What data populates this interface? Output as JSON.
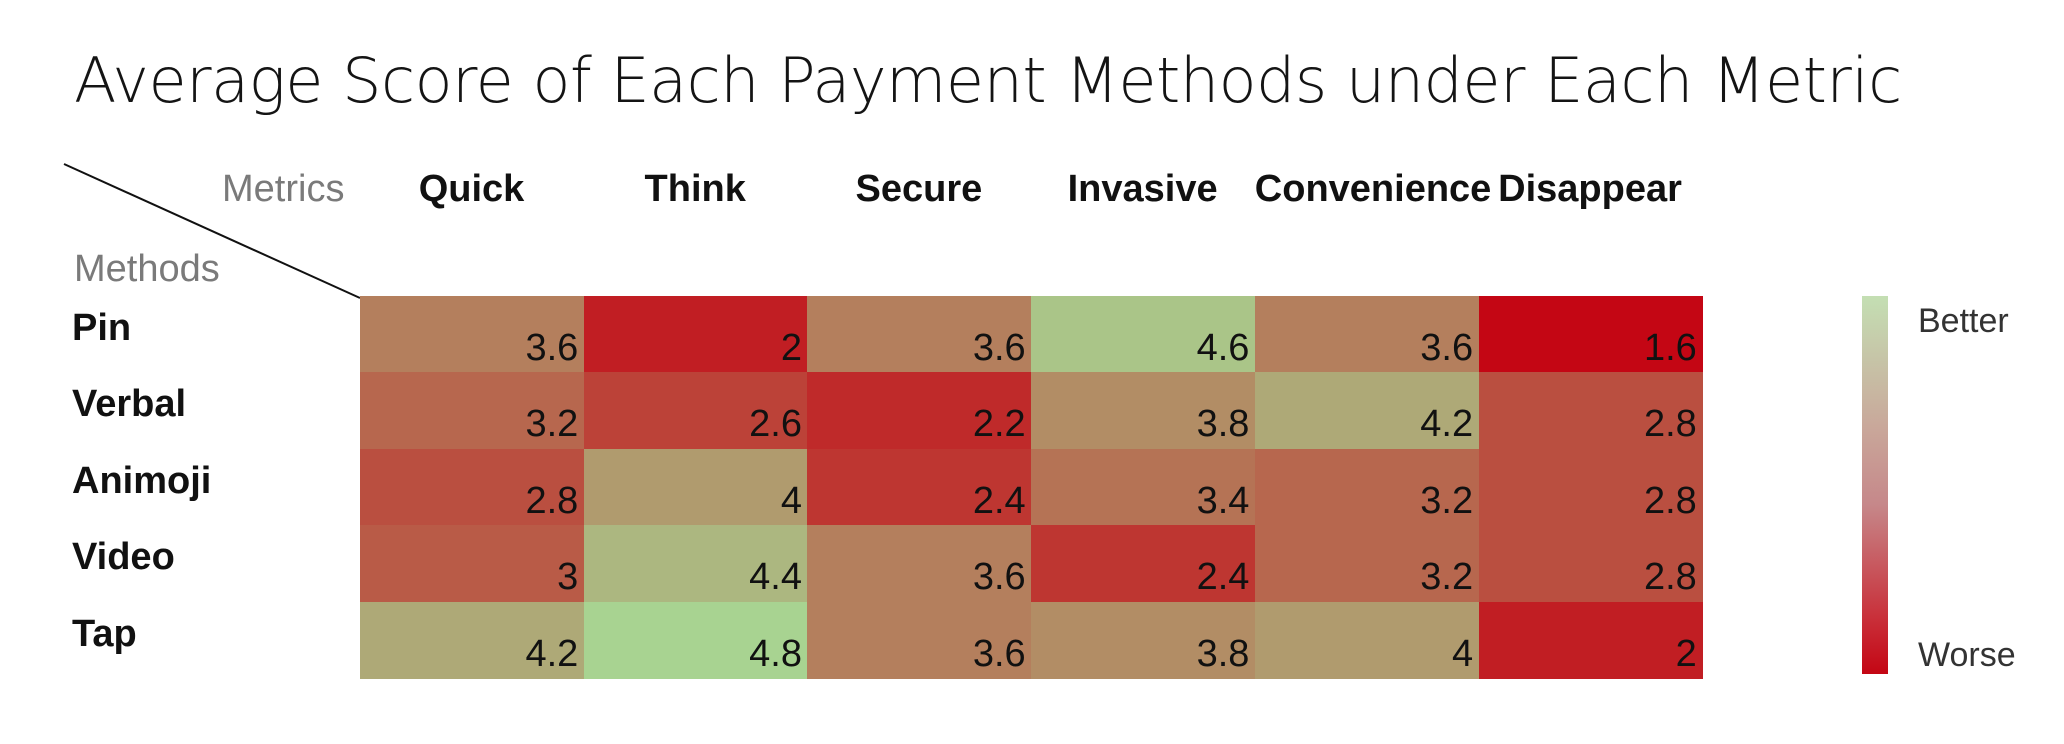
{
  "chart_data": {
    "type": "heatmap",
    "title": "Average Score of Each Payment Methods under Each Metric",
    "column_axis_label": "Metrics",
    "row_axis_label": "Methods",
    "columns": [
      "Quick",
      "Think",
      "Secure",
      "Invasive",
      "Convenience",
      "Disappear"
    ],
    "rows": [
      "Pin",
      "Verbal",
      "Animoji",
      "Video",
      "Tap"
    ],
    "values": [
      [
        3.6,
        2,
        3.6,
        4.6,
        3.6,
        1.6
      ],
      [
        3.2,
        2.6,
        2.2,
        3.8,
        4.2,
        2.8
      ],
      [
        2.8,
        4,
        2.4,
        3.4,
        3.2,
        2.8
      ],
      [
        3,
        4.4,
        3.6,
        2.4,
        3.2,
        2.8
      ],
      [
        4.2,
        4.8,
        3.6,
        3.8,
        4,
        2
      ]
    ],
    "color_scale": {
      "low_color": "#c40614",
      "mid_color": "#b47e5c",
      "high_color": "#a8d391",
      "low_value": 1.6,
      "high_value": 4.8
    },
    "legend": {
      "top_label": "Better",
      "bottom_label": "Worse",
      "placement": "right"
    }
  }
}
